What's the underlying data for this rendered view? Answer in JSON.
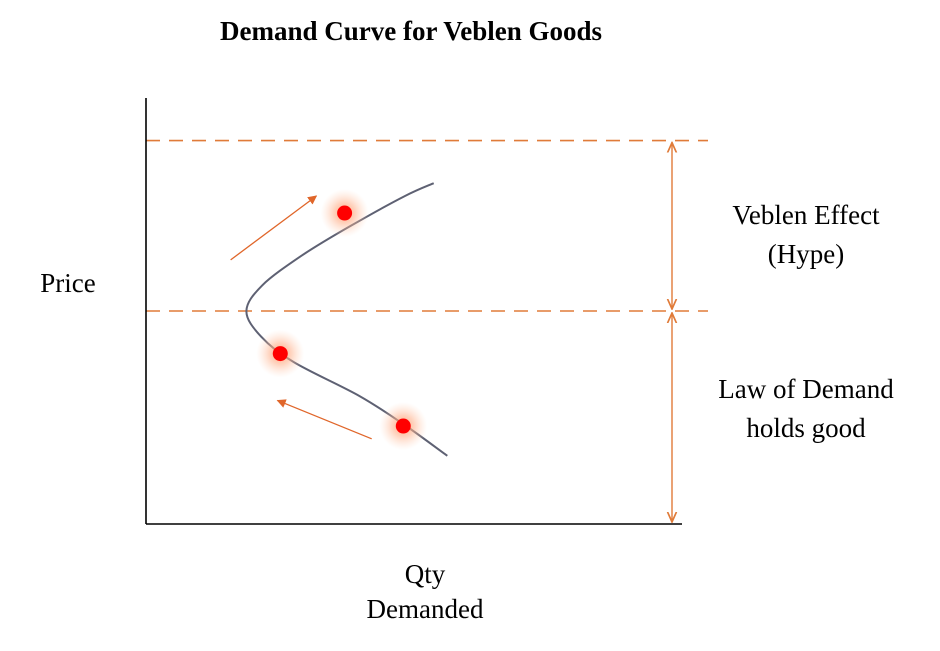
{
  "chart_data": {
    "type": "line",
    "title": "Demand Curve for Veblen Goods",
    "ylabel": "Price",
    "xlabel": [
      "Qty",
      "Demanded"
    ],
    "grid": false,
    "legend": "none",
    "series": [
      {
        "points": [
          {
            "x": 5.34,
            "y": 1.6
          },
          {
            "x": 4.61,
            "y": 2.3
          },
          {
            "x": 3.79,
            "y": 3.0
          },
          {
            "x": 2.62,
            "y": 3.8
          },
          {
            "x": 2.04,
            "y": 4.4
          },
          {
            "x": 1.78,
            "y": 5.0
          },
          {
            "x": 2.06,
            "y": 5.6
          },
          {
            "x": 2.76,
            "y": 6.3
          },
          {
            "x": 3.63,
            "y": 7.0
          },
          {
            "x": 4.59,
            "y": 7.7
          },
          {
            "x": 5.1,
            "y": 8.0
          }
        ]
      }
    ],
    "highlighted_points": [
      {
        "x": 4.56,
        "y": 2.3
      },
      {
        "x": 2.38,
        "y": 4.0
      },
      {
        "x": 3.52,
        "y": 7.3
      }
    ],
    "movement_arrows": [
      {
        "from": {
          "x": 4.0,
          "y": 2.0
        },
        "to": {
          "x": 2.33,
          "y": 2.9
        }
      },
      {
        "from": {
          "x": 1.5,
          "y": 6.2
        },
        "to": {
          "x": 3.02,
          "y": 7.7
        }
      }
    ],
    "reference_lines": [
      {
        "axis": "y",
        "value": 5.0,
        "style": "dashed"
      },
      {
        "axis": "y",
        "value": 9.0,
        "style": "dashed"
      }
    ],
    "brackets": [
      {
        "label": [
          "Veblen Effect",
          "(Hype)"
        ],
        "from": 5.0,
        "to": 9.0
      },
      {
        "label": [
          "Law of Demand",
          "holds good"
        ],
        "from": 0.0,
        "to": 5.0
      }
    ],
    "xlim": [
      0,
      9.5
    ],
    "ylim": [
      0,
      10
    ],
    "colors": {
      "axis": "#000000",
      "curve": "#5e6173",
      "reference": "#e07b39",
      "arrow": "#e0662a",
      "point": "#ff0000",
      "glow": "#ffb08a"
    }
  }
}
